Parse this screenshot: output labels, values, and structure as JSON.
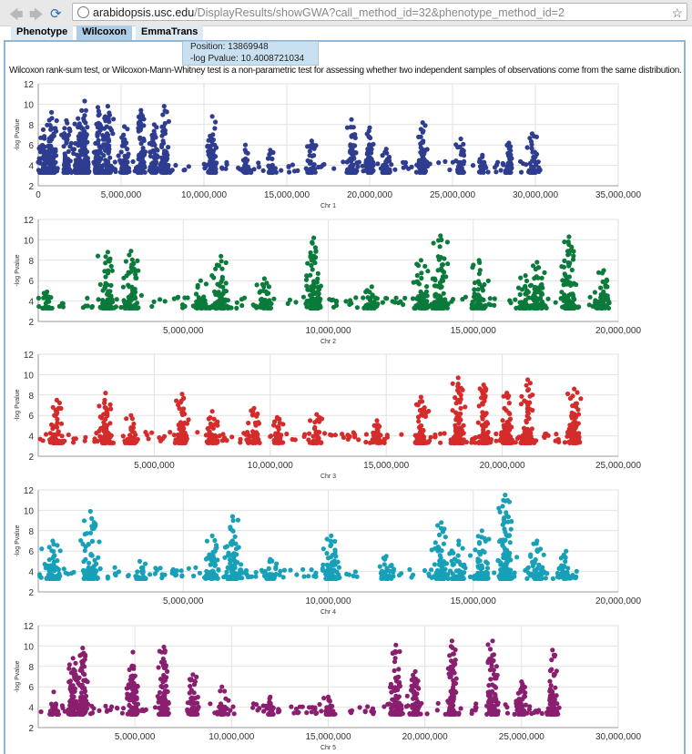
{
  "browser": {
    "url_host": "arabidopsis.usc.edu",
    "url_path": "/DisplayResults/showGWA?call_method_id=32&phenotype_method_id=2"
  },
  "tabs": [
    {
      "label": "Phenotype"
    },
    {
      "label": "Wilcoxon"
    },
    {
      "label": "EmmaTrans"
    }
  ],
  "tooltip": {
    "position": "Position: 13869948",
    "pvalue": "-log Pvalue: 10.4008721034"
  },
  "description": "Wilcoxon rank-sum test, or Wilcoxon-Mann-Whitney test is a non-parametric test for assessing whether two independent samples of observations come from the same distribution.",
  "chart_data": [
    {
      "type": "scatter",
      "title": "Chr 1",
      "xlabel": "Chr 1",
      "ylabel": "-log Pvalue",
      "xlim": [
        0,
        35000000
      ],
      "ylim": [
        2,
        12
      ],
      "xticks": [
        "0",
        "5,000,000",
        "10,000,000",
        "15,000,000",
        "20,000,000",
        "25,000,000",
        "30,000,000",
        "35,000,000"
      ],
      "yticks": [
        "2",
        "4",
        "6",
        "8",
        "10",
        "12"
      ],
      "color": "#2e3d8f",
      "length": 30400000,
      "peaks": [
        [
          300000,
          7.5
        ],
        [
          800000,
          9.2
        ],
        [
          1700000,
          8.4
        ],
        [
          2400000,
          8.6
        ],
        [
          2800000,
          10.3
        ],
        [
          3600000,
          9.7
        ],
        [
          4200000,
          9.8
        ],
        [
          5200000,
          7.8
        ],
        [
          6200000,
          9.4
        ],
        [
          7000000,
          8.0
        ],
        [
          7600000,
          9.8
        ],
        [
          10500000,
          8.8
        ],
        [
          12500000,
          6.0
        ],
        [
          14000000,
          5.5
        ],
        [
          16500000,
          6.4
        ],
        [
          18900000,
          8.5
        ],
        [
          20000000,
          7.7
        ],
        [
          21000000,
          5.6
        ],
        [
          23200000,
          8.2
        ],
        [
          25500000,
          6.6
        ],
        [
          26800000,
          5.0
        ],
        [
          28400000,
          6.2
        ],
        [
          29800000,
          7.1
        ]
      ]
    },
    {
      "type": "scatter",
      "title": "Chr 2",
      "xlabel": "Chr 2",
      "ylabel": "-log Pvalue",
      "xlim": [
        0,
        20000000
      ],
      "ylim": [
        2,
        12
      ],
      "xticks": [
        "5,000,000",
        "10,000,000",
        "15,000,000",
        "20,000,000"
      ],
      "yticks": [
        "2",
        "4",
        "6",
        "8",
        "10",
        "12"
      ],
      "color": "#0b7a3b",
      "length": 19700000,
      "peaks": [
        [
          300000,
          4.9
        ],
        [
          2400000,
          8.8
        ],
        [
          3200000,
          8.9
        ],
        [
          5600000,
          6.0
        ],
        [
          6300000,
          8.4
        ],
        [
          7800000,
          6.2
        ],
        [
          9500000,
          10.2
        ],
        [
          11500000,
          5.4
        ],
        [
          13200000,
          8.0
        ],
        [
          13869948,
          10.4
        ],
        [
          15200000,
          8.0
        ],
        [
          16800000,
          6.5
        ],
        [
          17200000,
          7.8
        ],
        [
          18300000,
          10.3
        ],
        [
          19500000,
          7.0
        ]
      ]
    },
    {
      "type": "scatter",
      "title": "Chr 3",
      "xlabel": "Chr 3",
      "ylabel": "-log Pvalue",
      "xlim": [
        0,
        25000000
      ],
      "ylim": [
        2,
        12
      ],
      "xticks": [
        "5,000,000",
        "10,000,000",
        "15,000,000",
        "20,000,000",
        "25,000,000"
      ],
      "yticks": [
        "2",
        "4",
        "6",
        "8",
        "10",
        "12"
      ],
      "color": "#d42b2b",
      "length": 23400000,
      "peaks": [
        [
          800000,
          7.5
        ],
        [
          2900000,
          8.2
        ],
        [
          4000000,
          6.0
        ],
        [
          6200000,
          8.1
        ],
        [
          7500000,
          6.4
        ],
        [
          9300000,
          6.7
        ],
        [
          10300000,
          5.8
        ],
        [
          12000000,
          6.1
        ],
        [
          14600000,
          5.5
        ],
        [
          16500000,
          7.8
        ],
        [
          18100000,
          9.7
        ],
        [
          19200000,
          9.0
        ],
        [
          20200000,
          8.2
        ],
        [
          21100000,
          9.5
        ],
        [
          23100000,
          8.6
        ]
      ]
    },
    {
      "type": "scatter",
      "title": "Chr 4",
      "xlabel": "Chr 4",
      "ylabel": "-log Pvalue",
      "xlim": [
        0,
        20000000
      ],
      "ylim": [
        2,
        12
      ],
      "xticks": [
        "5,000,000",
        "10,000,000",
        "15,000,000",
        "20,000,000"
      ],
      "yticks": [
        "2",
        "4",
        "6",
        "8",
        "10",
        "12"
      ],
      "color": "#17a0b8",
      "length": 18600000,
      "peaks": [
        [
          500000,
          7.0
        ],
        [
          1800000,
          9.9
        ],
        [
          3500000,
          5.0
        ],
        [
          6000000,
          7.5
        ],
        [
          6700000,
          9.4
        ],
        [
          8000000,
          5.2
        ],
        [
          10100000,
          7.5
        ],
        [
          12000000,
          5.5
        ],
        [
          13900000,
          8.8
        ],
        [
          14500000,
          7.0
        ],
        [
          15300000,
          8.0
        ],
        [
          16100000,
          11.5
        ],
        [
          17200000,
          7.0
        ],
        [
          18200000,
          6.0
        ]
      ]
    },
    {
      "type": "scatter",
      "title": "Chr 5",
      "xlabel": "Chr 5",
      "ylabel": "-log Pvalue",
      "xlim": [
        0,
        30000000
      ],
      "ylim": [
        2,
        12
      ],
      "xticks": [
        "5,000,000",
        "10,000,000",
        "15,000,000",
        "20,000,000",
        "25,000,000",
        "30,000,000"
      ],
      "yticks": [
        "2",
        "4",
        "6",
        "8",
        "10",
        "12"
      ],
      "color": "#8a1f6f",
      "length": 27000000,
      "peaks": [
        [
          800000,
          5.5
        ],
        [
          1800000,
          8.8
        ],
        [
          2300000,
          9.8
        ],
        [
          4900000,
          9.4
        ],
        [
          6500000,
          9.9
        ],
        [
          8000000,
          7.2
        ],
        [
          9500000,
          6.0
        ],
        [
          12000000,
          5.0
        ],
        [
          15000000,
          5.0
        ],
        [
          18500000,
          10.1
        ],
        [
          19500000,
          7.5
        ],
        [
          21400000,
          10.5
        ],
        [
          23500000,
          10.5
        ],
        [
          25000000,
          6.5
        ],
        [
          26600000,
          9.6
        ]
      ]
    }
  ]
}
